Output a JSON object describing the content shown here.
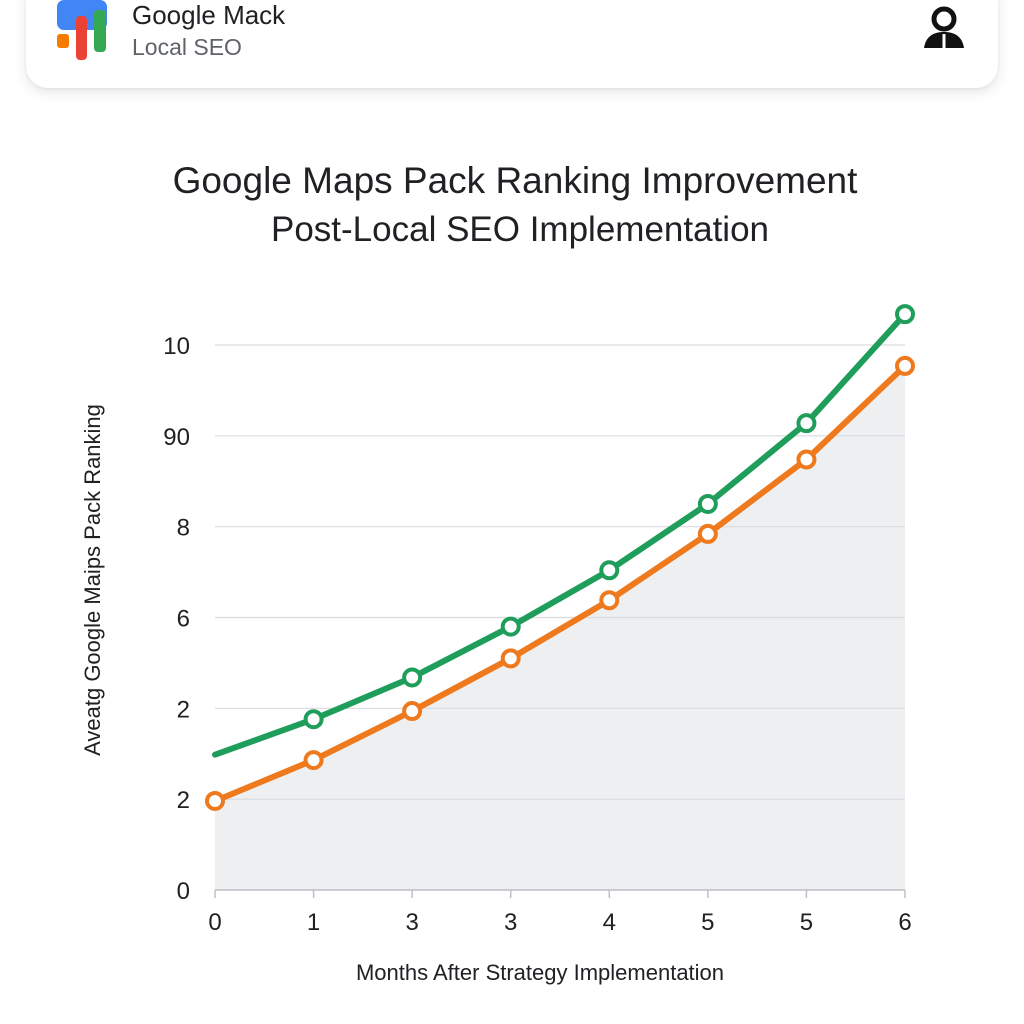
{
  "header": {
    "brand_name": "Google Mack",
    "brand_subtitle": "Local SEO",
    "profile_icon": "user-profile-icon",
    "logo_colors": [
      "#4285F4",
      "#FBBC05",
      "#EA4335",
      "#34A853",
      "#F57C00"
    ]
  },
  "chart_data": {
    "type": "line",
    "title": "Google Maps Pack Ranking Improvement",
    "subtitle": "Post-Local SEO Implementation",
    "xlabel": "Months After Strategy Implementation",
    "ylabel": "Aveatg Google Maips Pack Ranking",
    "x_tick_labels": [
      "0",
      "1",
      "3",
      "3",
      "4",
      "5",
      "5",
      "6"
    ],
    "y_tick_labels": [
      "0",
      "2",
      "2",
      "6",
      "8",
      "90",
      "10"
    ],
    "y_tick_positions": [
      0,
      1,
      2,
      3,
      4,
      5,
      6
    ],
    "ylim": [
      0,
      6
    ],
    "grid": true,
    "legend": "none",
    "series": [
      {
        "color": "#1E9E5A",
        "marker": "hollow-circle",
        "x": [
          0,
          1,
          2,
          3,
          4,
          5,
          6,
          7
        ],
        "values": [
          1.49,
          1.88,
          2.34,
          2.9,
          3.52,
          4.25,
          5.14,
          6.34
        ],
        "start_marker": false
      },
      {
        "color": "#EF7A1D",
        "marker": "hollow-circle",
        "x": [
          0,
          1,
          2,
          3,
          4,
          5,
          6,
          7
        ],
        "values": [
          0.98,
          1.43,
          1.97,
          2.55,
          3.19,
          3.92,
          4.74,
          5.77
        ],
        "start_marker": true,
        "filled_area": true
      }
    ],
    "area_color": "#EEEFF1",
    "grid_color": "#DADCE0"
  }
}
